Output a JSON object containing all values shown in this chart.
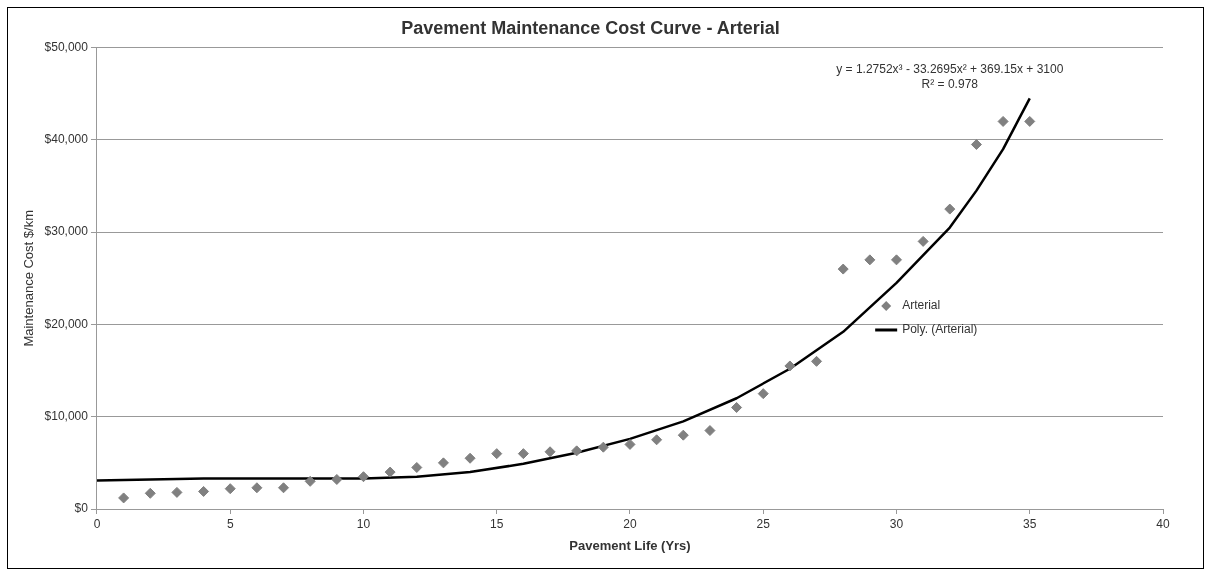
{
  "chart_data": {
    "type": "scatter",
    "title": "Pavement Maintenance Cost Curve - Arterial",
    "xlabel": "Pavement Life (Yrs)",
    "ylabel": "Maintenance Cost $/km",
    "series": [
      {
        "name": "Arterial",
        "type": "scatter",
        "color": "#808080",
        "marker": "diamond",
        "x": [
          1,
          2,
          3,
          4,
          5,
          6,
          7,
          8,
          9,
          10,
          11,
          12,
          13,
          14,
          15,
          16,
          17,
          18,
          19,
          20,
          21,
          22,
          23,
          24,
          25,
          26,
          27,
          28,
          29,
          30,
          31,
          32,
          33,
          34,
          35
        ],
        "values": [
          1200,
          1700,
          1800,
          1900,
          2200,
          2300,
          2300,
          3000,
          3200,
          3500,
          4000,
          4500,
          5000,
          5500,
          6000,
          6000,
          6200,
          6300,
          6700,
          7000,
          7500,
          8000,
          8500,
          11000,
          12500,
          15500,
          16000,
          26000,
          27000,
          27000,
          29000,
          32500,
          39500,
          42000,
          42000
        ]
      },
      {
        "name": "Poly. (Arterial)",
        "type": "line",
        "color": "#000000",
        "marker": "none",
        "line_style": "solid",
        "x": [
          0,
          2,
          4,
          6,
          8,
          10,
          12,
          14,
          16,
          18,
          20,
          22,
          24,
          26,
          28,
          30,
          32,
          33,
          34,
          35
        ],
        "values": [
          3100,
          3200,
          3300,
          3300,
          3300,
          3300,
          3500,
          4000,
          4900,
          6100,
          7600,
          9500,
          12000,
          15200,
          19200,
          24500,
          30500,
          34500,
          39000,
          44500
        ]
      }
    ],
    "xlim": [
      0,
      40
    ],
    "xticks": [
      0,
      5,
      10,
      15,
      20,
      25,
      30,
      35,
      40
    ],
    "ylim": [
      0,
      50000
    ],
    "yticks": [
      {
        "value": 0,
        "label": "$0"
      },
      {
        "value": 10000,
        "label": "$10,000"
      },
      {
        "value": 20000,
        "label": "$20,000"
      },
      {
        "value": 30000,
        "label": "$30,000"
      },
      {
        "value": 40000,
        "label": "$40,000"
      },
      {
        "value": 50000,
        "label": "$50,000"
      }
    ],
    "grid": "y",
    "legend": "right",
    "annotations": [
      "y = 1.2752x³ - 33.2695x² + 369.15x + 3100",
      "R² = 0.978"
    ]
  }
}
